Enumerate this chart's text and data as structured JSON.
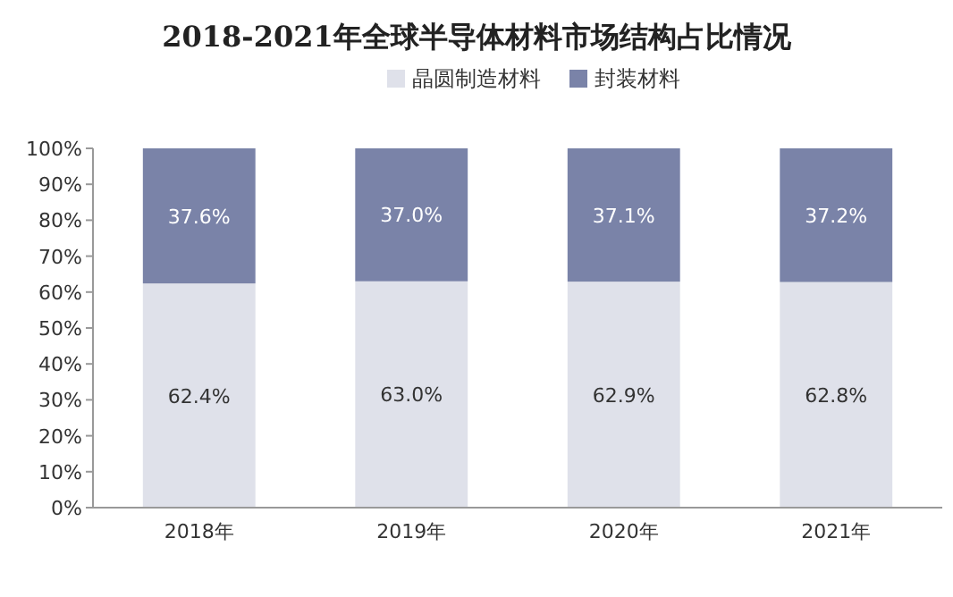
{
  "chart_data": {
    "type": "bar",
    "title": "2018-2021年全球半导体材料市场结构占比情况",
    "categories": [
      "2018年",
      "2019年",
      "2020年",
      "2021年"
    ],
    "stacked": true,
    "legend": "top",
    "series": [
      {
        "name": "晶圆制造材料",
        "color": "#dfe1ea",
        "values": [
          62.4,
          63.0,
          62.9,
          62.8
        ],
        "value_labels": [
          "62.4%",
          "63.0%",
          "62.9%",
          "62.8%"
        ]
      },
      {
        "name": "封装材料",
        "color": "#7a83a8",
        "values": [
          37.6,
          37.0,
          37.1,
          37.2
        ],
        "value_labels": [
          "37.6%",
          "37.0%",
          "37.1%",
          "37.2%"
        ]
      }
    ],
    "ylim": [
      0,
      100
    ],
    "yticks": [
      {
        "value": 0,
        "label": "0%"
      },
      {
        "value": 10,
        "label": "10%"
      },
      {
        "value": 20,
        "label": "20%"
      },
      {
        "value": 30,
        "label": "30%"
      },
      {
        "value": 40,
        "label": "40%"
      },
      {
        "value": 50,
        "label": "50%"
      },
      {
        "value": 60,
        "label": "60%"
      },
      {
        "value": 70,
        "label": "70%"
      },
      {
        "value": 80,
        "label": "80%"
      },
      {
        "value": 90,
        "label": "90%"
      },
      {
        "value": 100,
        "label": "100%"
      }
    ]
  }
}
